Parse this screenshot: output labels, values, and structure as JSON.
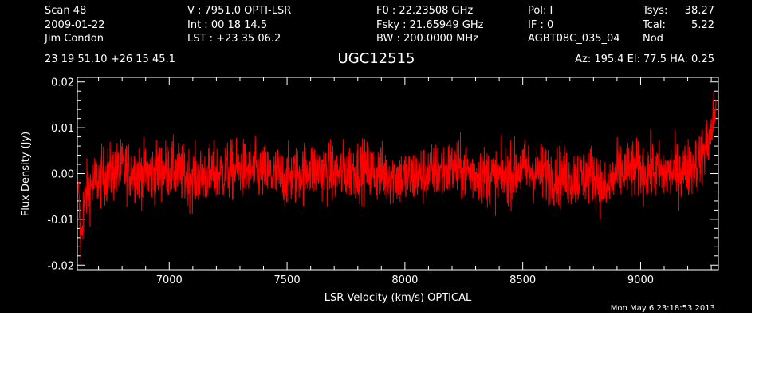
{
  "header": {
    "col1": [
      "Scan         48",
      "2009-01-22",
      "Jim Condon"
    ],
    "col2": [
      "V   :     7951.0 OPTI-LSR",
      "Int  :  00 18 14.5",
      "LST : +23 35 06.2"
    ],
    "col3": [
      "F0   :  22.23508 GHz",
      "Fsky :  21.65949 GHz",
      "BW   : 200.0000 MHz"
    ],
    "col4": [
      "Pol:      I",
      "IF :      0",
      "AGBT08C_035_04"
    ],
    "col5": [
      "Tsys:",
      "Tcal:",
      "Nod"
    ],
    "col6": [
      "38.27",
      "5.22",
      ""
    ],
    "coords": "23 19 51.10  +26 15 45.1",
    "source": "UGC12515",
    "azelha": "Az: 195.4   El:  77.5   HA:  0.25",
    "timestamp": "Mon May  6 23:18:53 2013"
  },
  "colors": {
    "background": "#000000",
    "axes": "#ffffff",
    "series": "#ff0000"
  },
  "chart_data": {
    "type": "line",
    "xlabel": "LSR Velocity (km/s) OPTICAL",
    "ylabel": "Flux Density (Jy)",
    "xlim": [
      6610,
      9330
    ],
    "ylim": [
      -0.021,
      0.021
    ],
    "xticks": [
      7000,
      7500,
      8000,
      8500,
      9000
    ],
    "xtick_labels": [
      "7000",
      "7500",
      "8000",
      "8500",
      "9000"
    ],
    "yticks": [
      -0.02,
      -0.01,
      0.0,
      0.01,
      0.02
    ],
    "ytick_labels": [
      "-0.02",
      "-0.01",
      "0.00",
      "0.01",
      "0.02"
    ],
    "grid": false,
    "series": [
      {
        "x": [
          6615,
          6625,
          6635,
          6650,
          6700,
          6800,
          6900,
          7000,
          7100,
          7200,
          7300,
          7400,
          7500,
          7600,
          7700,
          7800,
          7900,
          8000,
          8100,
          8200,
          8300,
          8400,
          8500,
          8600,
          8700,
          8800,
          8850,
          8900,
          9000,
          9100,
          9200,
          9250,
          9280,
          9300,
          9310,
          9320
        ],
        "y": [
          -0.005,
          -0.016,
          -0.008,
          -0.004,
          -0.001,
          0.001,
          0.0,
          0.001,
          -0.001,
          0.0,
          0.001,
          0.0,
          -0.001,
          0.001,
          0.0,
          0.001,
          0.0,
          -0.001,
          0.0,
          0.001,
          0.0,
          -0.001,
          0.001,
          0.0,
          -0.001,
          0.0,
          -0.004,
          0.0,
          0.001,
          0.0,
          0.001,
          0.003,
          0.006,
          0.009,
          0.012,
          0.015
        ]
      }
    ]
  }
}
